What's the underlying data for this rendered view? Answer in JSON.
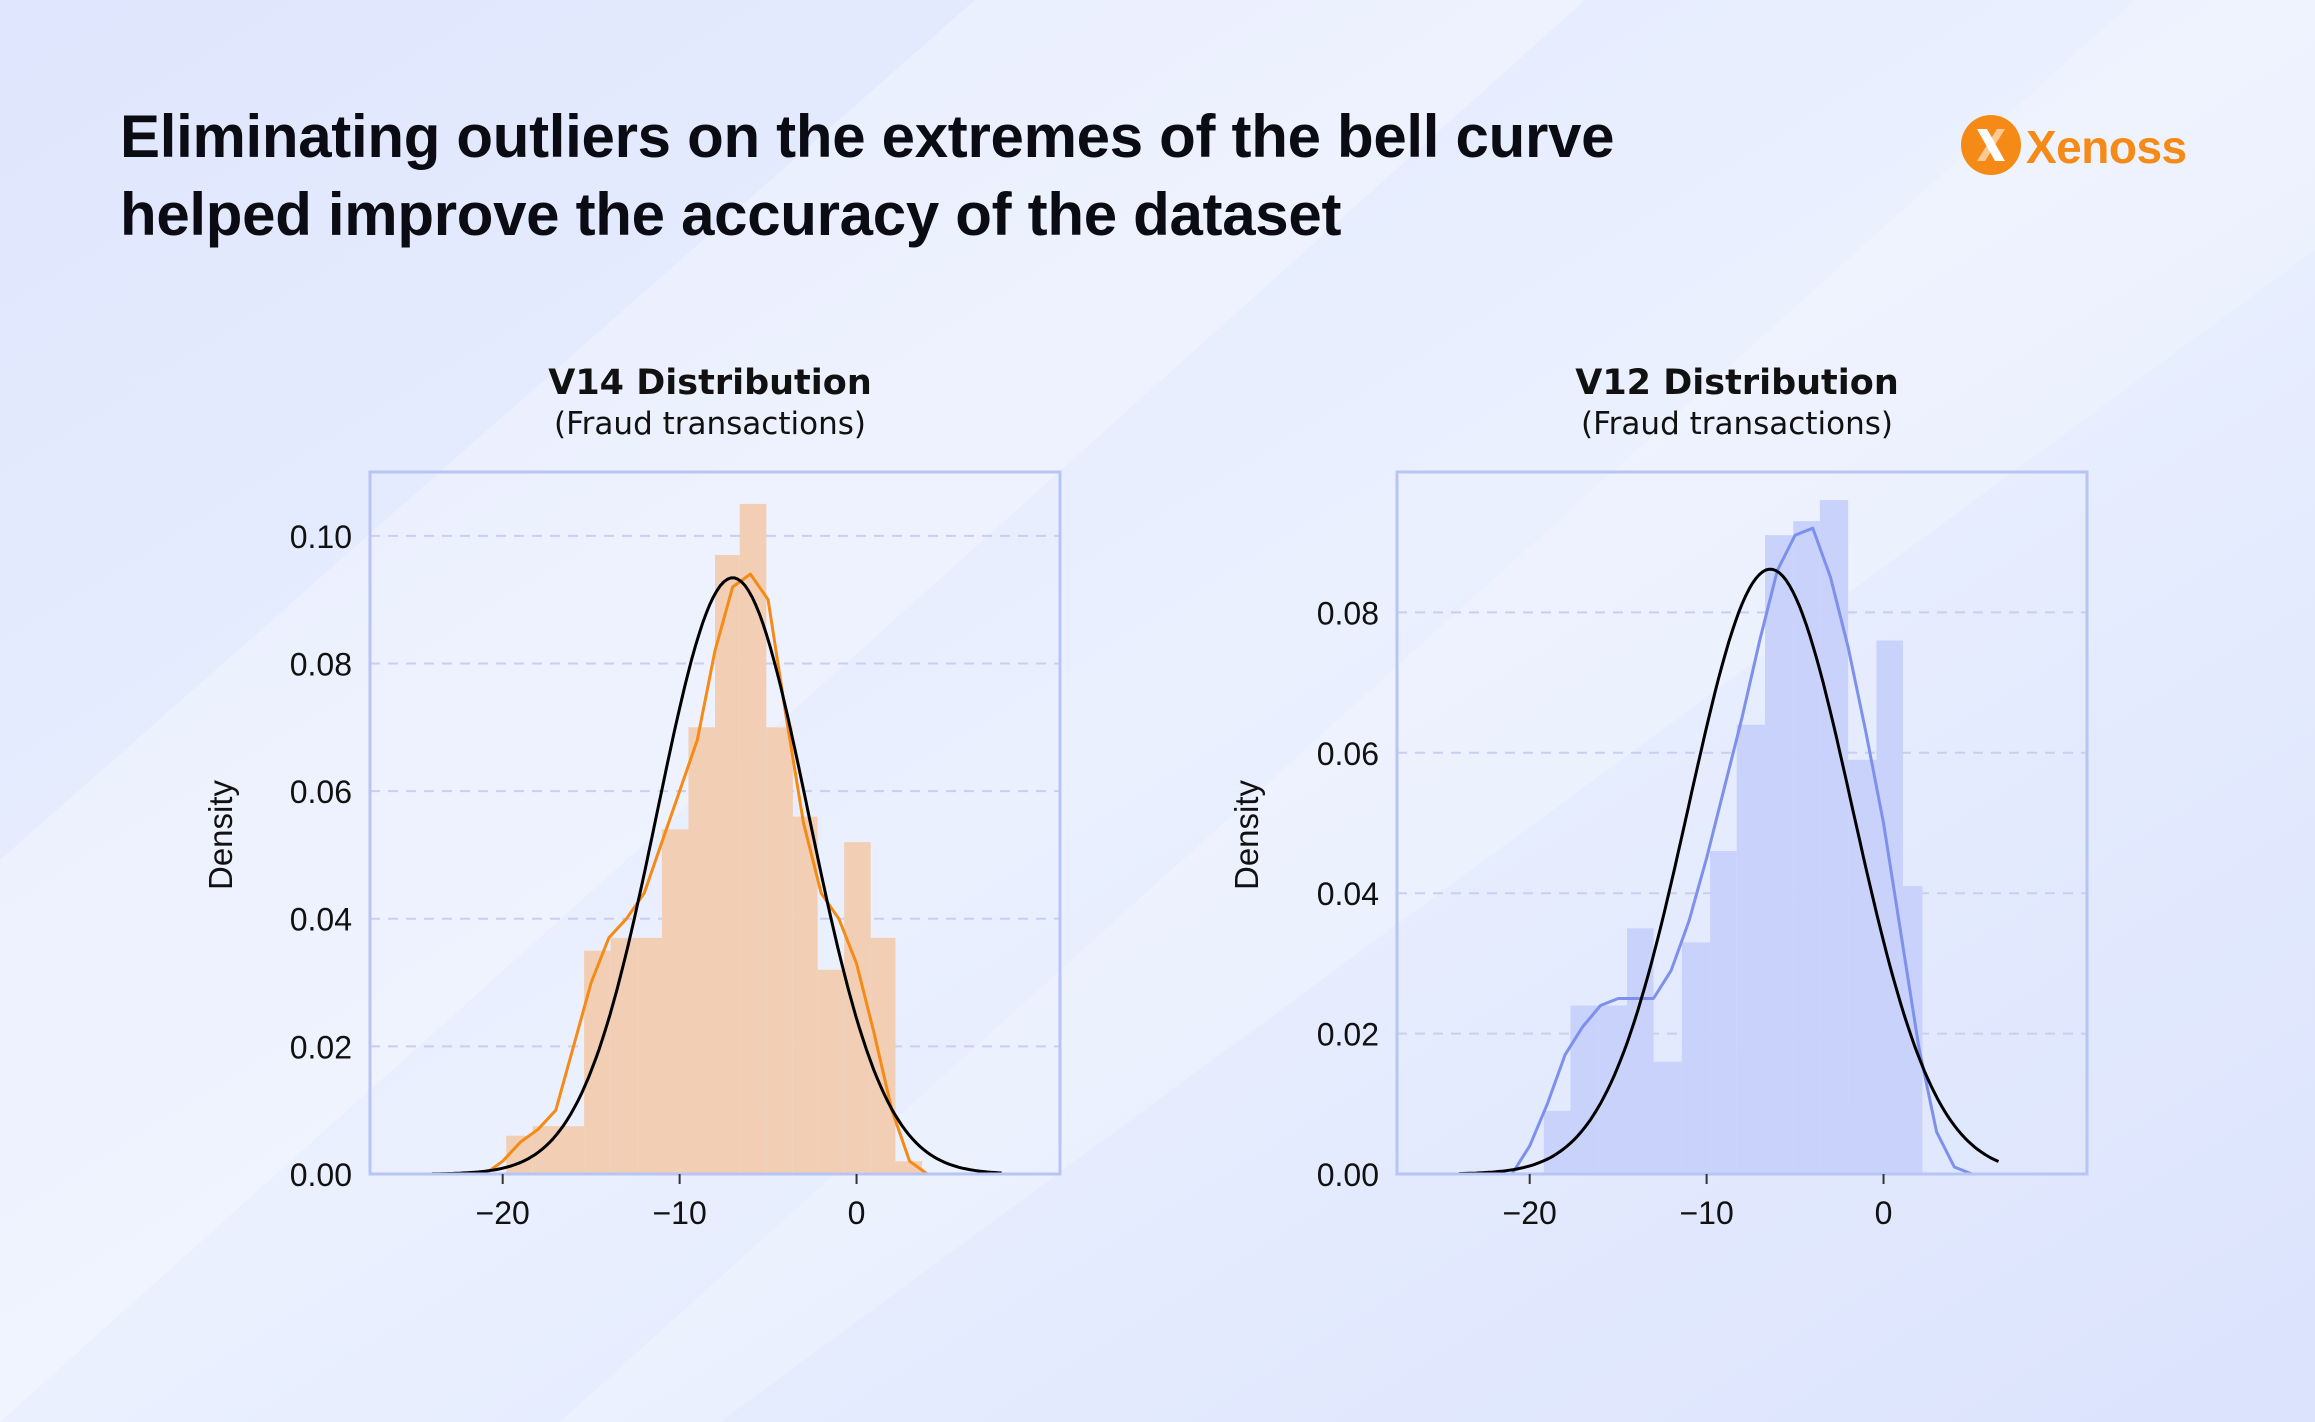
{
  "headline": {
    "line1": "Eliminating outliers on the extremes of the bell curve",
    "line2": "helped improve the accuracy of the dataset"
  },
  "brand": {
    "name": "Xenoss",
    "color": "#f58a17",
    "icon": "xenoss-logo-icon"
  },
  "colors": {
    "background": "#e4eafd",
    "fit_curve": "#000000",
    "grid": "#c8cff0",
    "frame": "#b7c4f4"
  },
  "chart_data": [
    {
      "type": "histogram",
      "title": "V14 Distribution",
      "subtitle": "(Fraud transactions)",
      "ylabel": "Density",
      "xlabel": "",
      "xticks": [
        -20,
        -10,
        0
      ],
      "yticks": [
        "0.00",
        "0.02",
        "0.04",
        "0.06",
        "0.08",
        "0.10"
      ],
      "xlim": [
        -27.5,
        11.5
      ],
      "ylim": [
        0,
        0.11
      ],
      "grid": "horizontal dashed",
      "hist_color": "#f2cfb4",
      "kde_color": "#f58a17",
      "bins": [
        {
          "x0": -19.8,
          "x1": -18.3,
          "density": 0.006
        },
        {
          "x0": -18.3,
          "x1": -16.9,
          "density": 0.0075
        },
        {
          "x0": -16.9,
          "x1": -15.4,
          "density": 0.0075
        },
        {
          "x0": -15.4,
          "x1": -13.9,
          "density": 0.035
        },
        {
          "x0": -13.9,
          "x1": -12.4,
          "density": 0.037
        },
        {
          "x0": -12.4,
          "x1": -11.0,
          "density": 0.037
        },
        {
          "x0": -11.0,
          "x1": -9.5,
          "density": 0.054
        },
        {
          "x0": -9.5,
          "x1": -8.0,
          "density": 0.07
        },
        {
          "x0": -8.0,
          "x1": -6.6,
          "density": 0.097
        },
        {
          "x0": -6.6,
          "x1": -5.1,
          "density": 0.105
        },
        {
          "x0": -5.1,
          "x1": -3.6,
          "density": 0.07
        },
        {
          "x0": -3.6,
          "x1": -2.2,
          "density": 0.056
        },
        {
          "x0": -2.2,
          "x1": -0.7,
          "density": 0.032
        },
        {
          "x0": -0.7,
          "x1": 0.8,
          "density": 0.052
        },
        {
          "x0": 0.8,
          "x1": 2.2,
          "density": 0.037
        },
        {
          "x0": 2.2,
          "x1": 3.7,
          "density": 0.002
        }
      ],
      "normal_fit": {
        "mean": -7.0,
        "std": 4.27,
        "x_range": [
          -24.0,
          8.2
        ]
      },
      "kde": [
        [
          -21,
          0.0
        ],
        [
          -20,
          0.002
        ],
        [
          -19,
          0.005
        ],
        [
          -18,
          0.007
        ],
        [
          -17,
          0.01
        ],
        [
          -16,
          0.02
        ],
        [
          -15,
          0.03
        ],
        [
          -14,
          0.037
        ],
        [
          -13,
          0.04
        ],
        [
          -12,
          0.044
        ],
        [
          -11,
          0.052
        ],
        [
          -10,
          0.06
        ],
        [
          -9,
          0.068
        ],
        [
          -8,
          0.082
        ],
        [
          -7,
          0.092
        ],
        [
          -6,
          0.094
        ],
        [
          -5,
          0.09
        ],
        [
          -4,
          0.072
        ],
        [
          -3,
          0.055
        ],
        [
          -2,
          0.044
        ],
        [
          -1,
          0.04
        ],
        [
          0,
          0.033
        ],
        [
          1,
          0.022
        ],
        [
          2,
          0.01
        ],
        [
          3,
          0.002
        ],
        [
          4,
          0.0
        ]
      ]
    },
    {
      "type": "histogram",
      "title": "V12 Distribution",
      "subtitle": "(Fraud transactions)",
      "ylabel": "Density",
      "xlabel": "",
      "xticks": [
        -20,
        -10,
        0
      ],
      "yticks": [
        "0.00",
        "0.02",
        "0.04",
        "0.06",
        "0.08"
      ],
      "xlim": [
        -27.5,
        11.5
      ],
      "ylim": [
        0,
        0.1
      ],
      "grid": "horizontal dashed",
      "hist_color": "#c8d2fb",
      "kde_color": "#7d90ec",
      "bins": [
        {
          "x0": -19.2,
          "x1": -17.7,
          "density": 0.009
        },
        {
          "x0": -17.7,
          "x1": -16.1,
          "density": 0.024
        },
        {
          "x0": -16.1,
          "x1": -14.5,
          "density": 0.024
        },
        {
          "x0": -14.5,
          "x1": -13.0,
          "density": 0.035
        },
        {
          "x0": -13.0,
          "x1": -11.4,
          "density": 0.016
        },
        {
          "x0": -11.4,
          "x1": -9.8,
          "density": 0.033
        },
        {
          "x0": -9.8,
          "x1": -8.3,
          "density": 0.046
        },
        {
          "x0": -8.3,
          "x1": -6.7,
          "density": 0.064
        },
        {
          "x0": -6.7,
          "x1": -5.1,
          "density": 0.091
        },
        {
          "x0": -5.1,
          "x1": -3.6,
          "density": 0.093
        },
        {
          "x0": -3.6,
          "x1": -2.0,
          "density": 0.096
        },
        {
          "x0": -2.0,
          "x1": -0.4,
          "density": 0.059
        },
        {
          "x0": -0.4,
          "x1": 1.1,
          "density": 0.076
        },
        {
          "x0": 1.1,
          "x1": 2.2,
          "density": 0.041
        }
      ],
      "normal_fit": {
        "mean": -6.4,
        "std": 4.63,
        "x_range": [
          -24.0,
          6.5
        ]
      },
      "kde": [
        [
          -21,
          0.0
        ],
        [
          -20,
          0.004
        ],
        [
          -19,
          0.01
        ],
        [
          -18,
          0.017
        ],
        [
          -17,
          0.021
        ],
        [
          -16,
          0.024
        ],
        [
          -15,
          0.025
        ],
        [
          -14,
          0.025
        ],
        [
          -13,
          0.025
        ],
        [
          -12,
          0.029
        ],
        [
          -11,
          0.036
        ],
        [
          -10,
          0.045
        ],
        [
          -9,
          0.055
        ],
        [
          -8,
          0.065
        ],
        [
          -7,
          0.076
        ],
        [
          -6,
          0.086
        ],
        [
          -5,
          0.091
        ],
        [
          -4,
          0.092
        ],
        [
          -3,
          0.085
        ],
        [
          -2,
          0.075
        ],
        [
          -1,
          0.063
        ],
        [
          0,
          0.05
        ],
        [
          1,
          0.034
        ],
        [
          2,
          0.018
        ],
        [
          3,
          0.006
        ],
        [
          4,
          0.001
        ],
        [
          5,
          0.0
        ],
        [
          7.5,
          0.0
        ]
      ]
    }
  ]
}
